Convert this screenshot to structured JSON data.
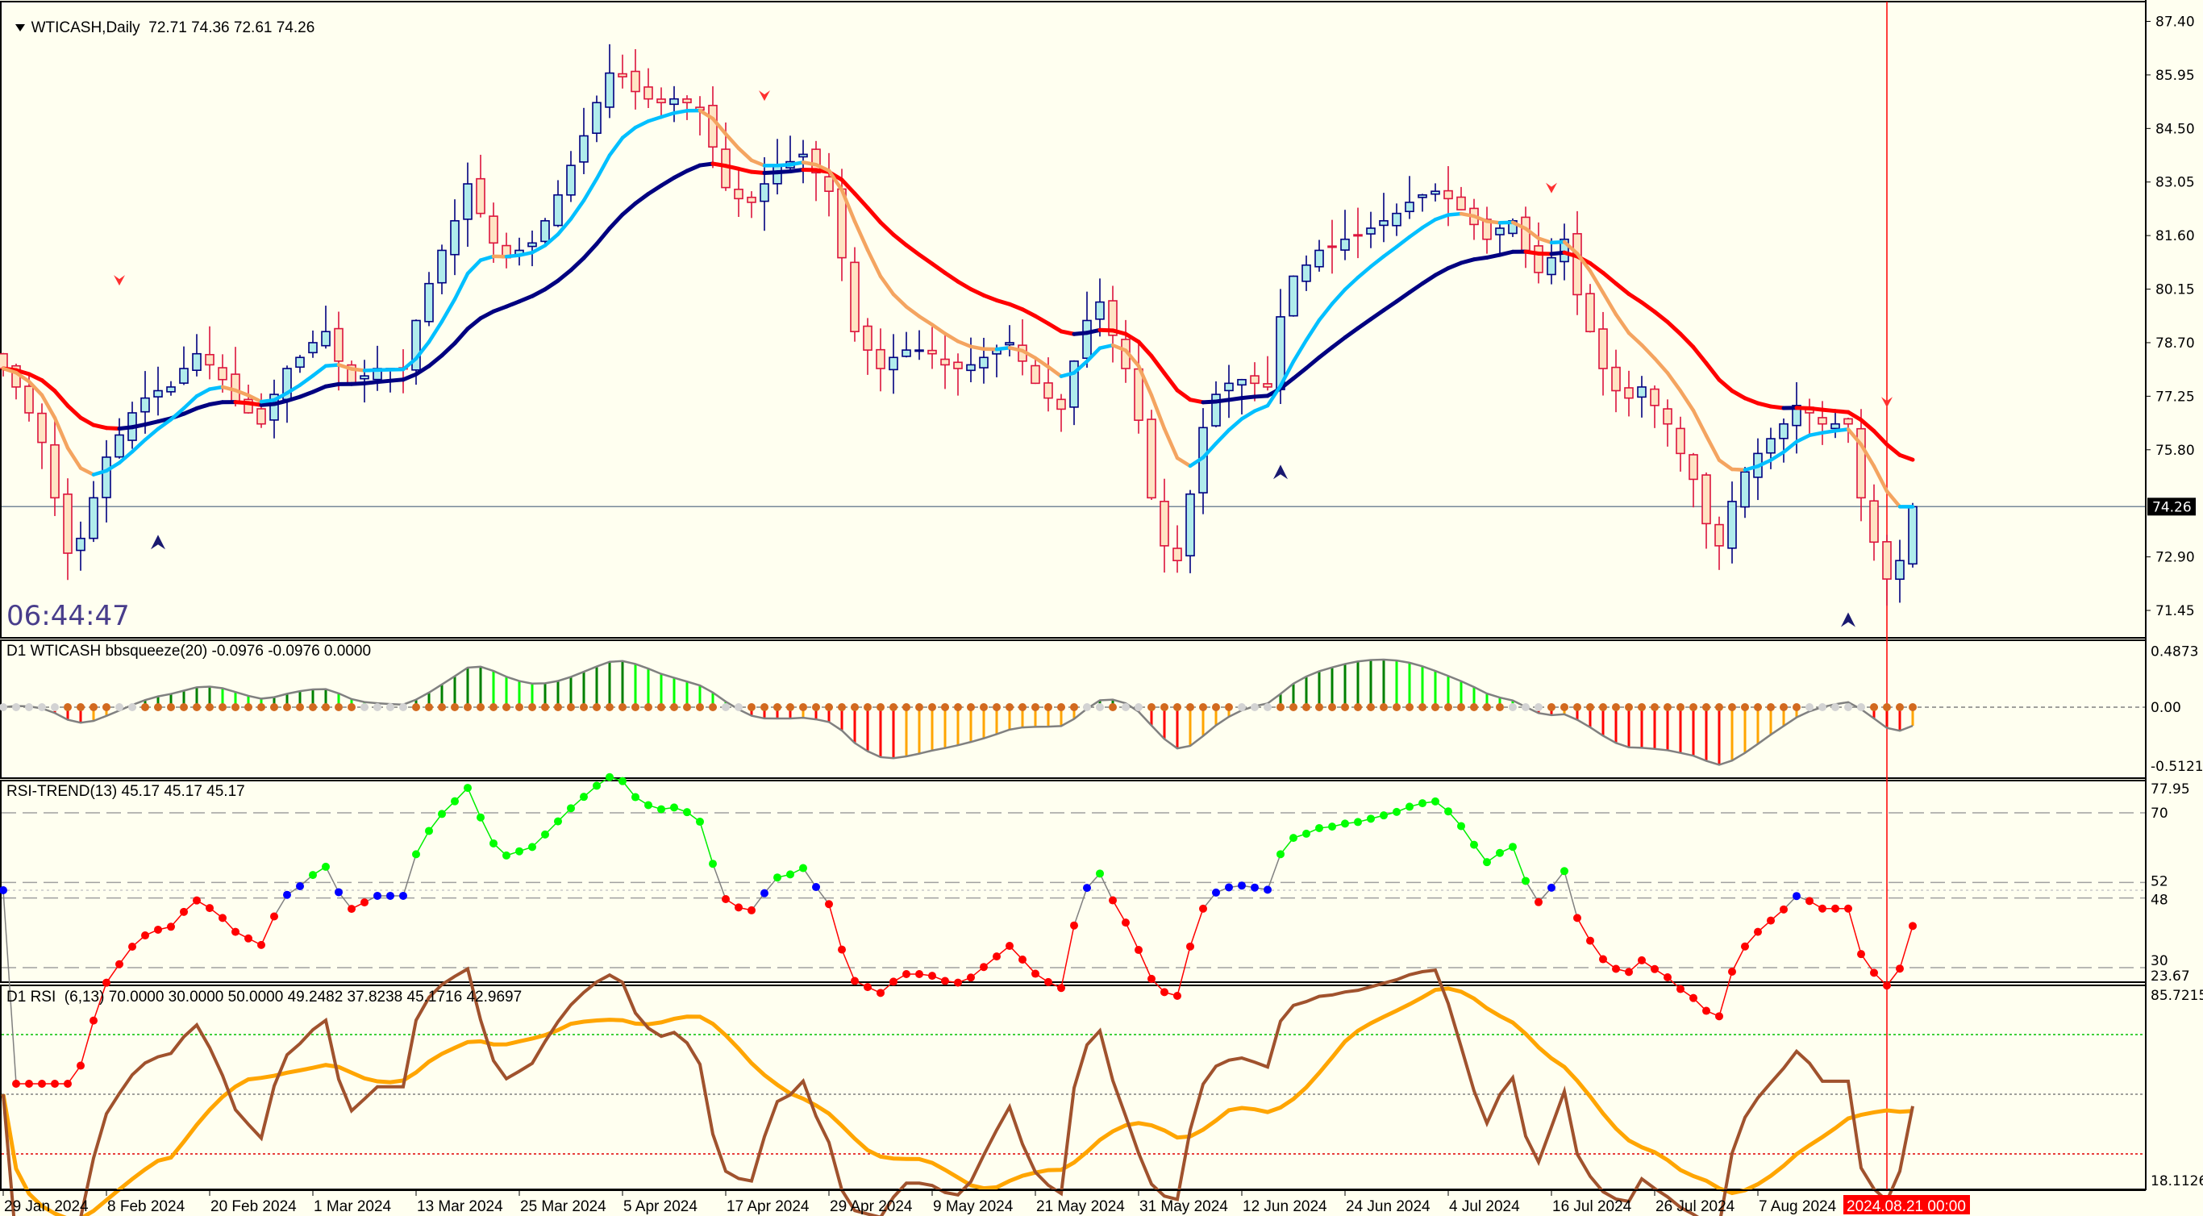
{
  "main": {
    "title": "WTICASH,Daily",
    "ohlc_text": "72.71 74.36 72.61 74.26",
    "clock": "06:44:47",
    "price_labels": [
      "87.40",
      "85.95",
      "84.50",
      "83.05",
      "81.60",
      "80.15",
      "78.70",
      "77.25",
      "75.80",
      "72.90",
      "71.45"
    ],
    "current_price_label": "74.26",
    "current_price": 74.26
  },
  "bbsqueeze": {
    "title": "D1 WTICASH bbsqueeze(20) -0.0976 -0.0976 0.0000",
    "labels": {
      "top": "0.4873",
      "zero": "0.00",
      "bottom": "-0.5121"
    }
  },
  "rsi_trend": {
    "title": "RSI-TREND(13) 45.17 45.17 45.17",
    "labels": {
      "max": "77.95",
      "l70": "70",
      "l52": "52",
      "l48": "48",
      "l30": "30",
      "min": "23.67"
    }
  },
  "rsi": {
    "title": "D1 RSI  (6,13) 70.0000 30.0000 50.0000 49.2482 37.8238 45.1716 42.9697",
    "labels": {
      "max": "85.7215",
      "min": "18.1126"
    }
  },
  "xaxis": {
    "labels": [
      "29 Jan 2024",
      "8 Feb 2024",
      "20 Feb 2024",
      "1 Mar 2024",
      "13 Mar 2024",
      "25 Mar 2024",
      "5 Apr 2024",
      "17 Apr 2024",
      "29 Apr 2024",
      "9 May 2024",
      "21 May 2024",
      "31 May 2024",
      "12 Jun 2024",
      "24 Jun 2024",
      "4 Jul 2024",
      "16 Jul 2024",
      "26 Jul 2024",
      "7 Aug 2024"
    ],
    "cursor_label": "2024.08.21 00:00"
  },
  "colors": {
    "background": "#fffff0",
    "bull_fill": "#b0ecec",
    "bull_border": "#000080",
    "bear_fill": "#ffe4c4",
    "bear_border": "#dc143c",
    "fast_up": "#00bfff",
    "fast_down": "#f4a460",
    "slow_up": "#000080",
    "slow_down": "#ff0000",
    "cursor": "#ff0000"
  },
  "chart_data": {
    "type": "candlestick",
    "symbol": "WTICASH",
    "timeframe": "Daily",
    "last_bar": {
      "open": 72.71,
      "high": 74.36,
      "low": 72.61,
      "close": 74.26
    },
    "cursor_bar": 146,
    "closes": [
      78.0,
      77.5,
      76.8,
      76.0,
      74.5,
      73.0,
      73.4,
      74.5,
      75.6,
      76.2,
      76.8,
      77.2,
      77.4,
      77.5,
      78.0,
      78.4,
      78.1,
      77.7,
      77.1,
      76.8,
      76.5,
      77.3,
      78.0,
      78.3,
      78.7,
      79.0,
      78.2,
      77.6,
      77.8,
      78.0,
      78.0,
      78.0,
      79.3,
      80.3,
      81.2,
      82.0,
      83.0,
      82.2,
      81.4,
      81.0,
      81.2,
      81.4,
      82.0,
      82.7,
      83.5,
      84.3,
      85.2,
      86.0,
      85.9,
      85.5,
      85.3,
      85.2,
      85.3,
      85.2,
      85.0,
      84.0,
      82.9,
      82.6,
      82.5,
      83.0,
      83.5,
      83.6,
      83.8,
      83.3,
      82.8,
      81.0,
      79.0,
      78.5,
      78.0,
      78.3,
      78.5,
      78.5,
      78.4,
      78.1,
      78.0,
      78.1,
      78.3,
      78.5,
      78.7,
      78.2,
      77.6,
      77.2,
      76.9,
      78.2,
      79.3,
      79.8,
      78.9,
      78.0,
      76.6,
      74.5,
      73.2,
      72.8,
      74.6,
      76.4,
      77.3,
      77.6,
      77.7,
      77.6,
      77.5,
      79.4,
      80.5,
      80.8,
      81.2,
      81.3,
      81.5,
      81.6,
      81.8,
      82.0,
      82.2,
      82.5,
      82.7,
      82.8,
      82.6,
      82.3,
      81.9,
      81.5,
      81.8,
      82.0,
      81.2,
      80.6,
      81.0,
      81.5,
      80.0,
      79.0,
      78.0,
      77.4,
      77.2,
      77.5,
      77.0,
      76.5,
      75.7,
      75.0,
      73.8,
      73.2,
      74.4,
      75.2,
      75.7,
      76.1,
      76.5,
      77.0,
      76.8,
      76.5,
      76.5,
      76.5,
      74.5,
      73.3,
      72.3,
      72.8,
      74.26
    ],
    "arrows": [
      {
        "bar": 9,
        "price": 80.4,
        "dir": "down"
      },
      {
        "bar": 59,
        "price": 85.4,
        "dir": "down"
      },
      {
        "bar": 120,
        "price": 82.9,
        "dir": "down"
      },
      {
        "bar": 146,
        "price": 77.1,
        "dir": "down"
      },
      {
        "bar": 12,
        "price": 73.3,
        "dir": "up"
      },
      {
        "bar": 99,
        "price": 75.2,
        "dir": "up"
      },
      {
        "bar": 143,
        "price": 71.2,
        "dir": "up"
      }
    ],
    "price_range": [
      71.45,
      87.4
    ],
    "bbsqueeze_range": [
      -0.5121,
      0.4873
    ],
    "rsi_trend_levels": [
      70,
      52,
      50,
      48,
      30
    ],
    "rsi_levels": [
      70,
      50,
      30
    ],
    "rsi_range": [
      18.1126,
      85.7215
    ]
  }
}
